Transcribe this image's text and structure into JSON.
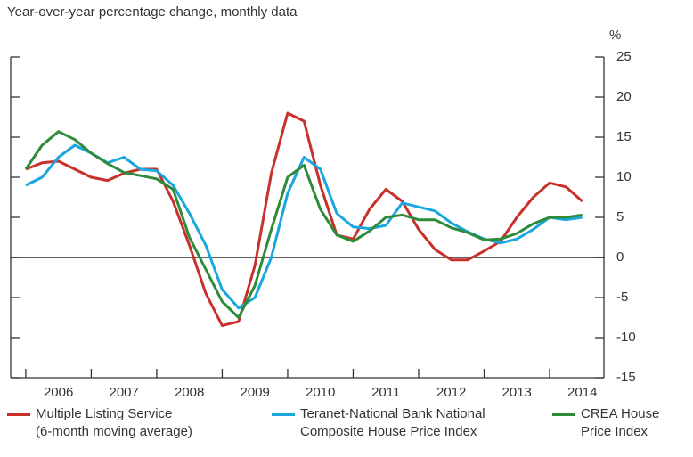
{
  "chart_data": {
    "type": "line",
    "subtitle": "Year-over-year percentage change, monthly data",
    "y_unit": "%",
    "x": [
      2006,
      2006.25,
      2006.5,
      2006.75,
      2007,
      2007.25,
      2007.5,
      2007.75,
      2008,
      2008.25,
      2008.5,
      2008.75,
      2009,
      2009.25,
      2009.5,
      2009.75,
      2010,
      2010.25,
      2010.5,
      2010.75,
      2011,
      2011.25,
      2011.5,
      2011.75,
      2012,
      2012.25,
      2012.5,
      2012.75,
      2013,
      2013.25,
      2013.5,
      2013.75,
      2014,
      2014.25,
      2014.5
    ],
    "series": [
      {
        "name": "Multiple Listing Service\n(6-month moving average)",
        "color": "#c8312b",
        "values": [
          11,
          11.8,
          12,
          11,
          10,
          9.6,
          10.5,
          11,
          11,
          7,
          1.5,
          -4.5,
          -8.5,
          -8,
          -1,
          10.5,
          18,
          17,
          9,
          2.8,
          2.3,
          6,
          8.5,
          7,
          3.5,
          1,
          -0.3,
          -0.3,
          0.8,
          2,
          5,
          7.5,
          9.3,
          8.8,
          7
        ]
      },
      {
        "name": "Teranet-National Bank National\nComposite House Price Index",
        "color": "#1aa6de",
        "values": [
          9,
          10,
          12.5,
          14,
          13,
          11.8,
          12.5,
          11,
          10.8,
          9,
          5.5,
          1.5,
          -4,
          -6.3,
          -5,
          0,
          8,
          12.5,
          11,
          5.5,
          3.8,
          3.6,
          4,
          6.8,
          6.3,
          5.8,
          4.3,
          3.2,
          2.3,
          1.8,
          2.3,
          3.5,
          5,
          4.7,
          5
        ]
      },
      {
        "name": "CREA House\nPrice Index",
        "color": "#2e8b3a",
        "values": [
          11,
          14,
          15.7,
          14.7,
          13,
          11.7,
          10.6,
          10.2,
          9.8,
          8.5,
          2.5,
          -1.5,
          -5.5,
          -7.5,
          -3.5,
          3.5,
          10,
          11.5,
          6,
          2.8,
          2,
          3.3,
          5,
          5.3,
          4.7,
          4.7,
          3.7,
          3.1,
          2.2,
          2.3,
          3,
          4.2,
          5,
          5,
          5.3
        ]
      }
    ],
    "xlim": [
      2005.77,
      2014.83
    ],
    "xticks": [
      {
        "value": 2006,
        "label": "2006"
      },
      {
        "value": 2007,
        "label": "2007"
      },
      {
        "value": 2008,
        "label": "2008"
      },
      {
        "value": 2009,
        "label": "2009"
      },
      {
        "value": 2010,
        "label": "2010"
      },
      {
        "value": 2011,
        "label": "2011"
      },
      {
        "value": 2012,
        "label": "2012"
      },
      {
        "value": 2013,
        "label": "2013"
      },
      {
        "value": 2014,
        "label": "2014"
      }
    ],
    "ylim": [
      -15,
      25
    ],
    "yticks": [
      -15,
      -10,
      -5,
      0,
      5,
      10,
      15,
      20,
      25
    ]
  }
}
